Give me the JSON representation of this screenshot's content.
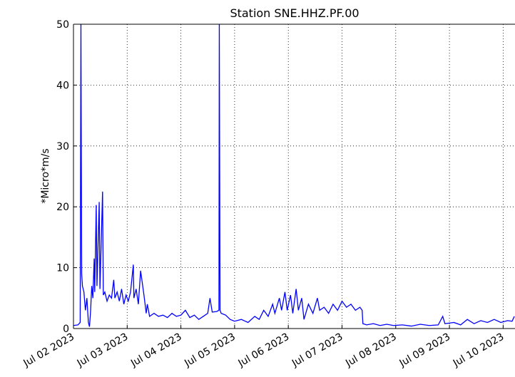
{
  "chart_data": {
    "type": "line",
    "title": "Station SNE.HHZ.PF.00",
    "y_label": "*Micro*m/s",
    "color": "#0000ff",
    "grid": true,
    "x": [
      "2023-07-02T00:00",
      "2023-07-02T02:00",
      "2023-07-02T03:00",
      "2023-07-02T03:20",
      "2023-07-02T03:40",
      "2023-07-02T04:00",
      "2023-07-02T04:40",
      "2023-07-02T05:20",
      "2023-07-02T06:00",
      "2023-07-02T06:40",
      "2023-07-02T07:10",
      "2023-07-02T07:40",
      "2023-07-02T08:10",
      "2023-07-02T08:40",
      "2023-07-02T09:15",
      "2023-07-02T09:30",
      "2023-07-02T10:10",
      "2023-07-02T10:30",
      "2023-07-02T11:30",
      "2023-07-02T11:50",
      "2023-07-02T13:00",
      "2023-07-02T13:20",
      "2023-07-02T14:00",
      "2023-07-02T15:00",
      "2023-07-02T16:00",
      "2023-07-02T17:00",
      "2023-07-02T18:00",
      "2023-07-02T18:30",
      "2023-07-02T19:30",
      "2023-07-02T20:30",
      "2023-07-02T21:30",
      "2023-07-02T22:30",
      "2023-07-02T23:30",
      "2023-07-03T00:30",
      "2023-07-03T01:30",
      "2023-07-03T02:45",
      "2023-07-03T03:00",
      "2023-07-03T04:00",
      "2023-07-03T05:00",
      "2023-07-03T06:00",
      "2023-07-03T07:30",
      "2023-07-03T08:30",
      "2023-07-03T09:00",
      "2023-07-03T10:00",
      "2023-07-03T12:00",
      "2023-07-03T14:00",
      "2023-07-03T16:00",
      "2023-07-03T18:00",
      "2023-07-03T20:00",
      "2023-07-03T22:00",
      "2023-07-04T00:00",
      "2023-07-04T02:00",
      "2023-07-04T04:00",
      "2023-07-04T06:00",
      "2023-07-04T08:00",
      "2023-07-04T10:00",
      "2023-07-04T12:00",
      "2023-07-04T13:00",
      "2023-07-04T14:00",
      "2023-07-04T16:00",
      "2023-07-04T17:00",
      "2023-07-04T17:10",
      "2023-07-04T17:30",
      "2023-07-04T18:00",
      "2023-07-04T20:00",
      "2023-07-04T22:00",
      "2023-07-05T00:00",
      "2023-07-05T03:00",
      "2023-07-05T06:00",
      "2023-07-05T09:00",
      "2023-07-05T11:00",
      "2023-07-05T13:00",
      "2023-07-05T15:00",
      "2023-07-05T17:00",
      "2023-07-05T18:00",
      "2023-07-05T20:00",
      "2023-07-05T21:00",
      "2023-07-05T22:30",
      "2023-07-05T23:30",
      "2023-07-06T01:00",
      "2023-07-06T02:00",
      "2023-07-06T03:30",
      "2023-07-06T04:30",
      "2023-07-06T06:00",
      "2023-07-06T07:00",
      "2023-07-06T09:00",
      "2023-07-06T11:00",
      "2023-07-06T13:00",
      "2023-07-06T14:00",
      "2023-07-06T16:00",
      "2023-07-06T18:00",
      "2023-07-06T20:00",
      "2023-07-06T22:00",
      "2023-07-07T00:00",
      "2023-07-07T02:00",
      "2023-07-07T04:00",
      "2023-07-07T06:00",
      "2023-07-07T08:00",
      "2023-07-07T09:00",
      "2023-07-07T09:20",
      "2023-07-07T11:00",
      "2023-07-07T14:00",
      "2023-07-07T17:00",
      "2023-07-07T20:00",
      "2023-07-07T23:00",
      "2023-07-08T03:00",
      "2023-07-08T07:00",
      "2023-07-08T11:00",
      "2023-07-08T15:00",
      "2023-07-08T19:00",
      "2023-07-08T21:00",
      "2023-07-08T22:00",
      "2023-07-09T02:00",
      "2023-07-09T05:00",
      "2023-07-09T08:00",
      "2023-07-09T11:00",
      "2023-07-09T14:00",
      "2023-07-09T17:00",
      "2023-07-09T20:00",
      "2023-07-09T23:00",
      "2023-07-10T02:00",
      "2023-07-10T04:00",
      "2023-07-10T05:00"
    ],
    "values": [
      0.5,
      0.6,
      1.0,
      50,
      9,
      7,
      6,
      3,
      5,
      1,
      0.3,
      3,
      7,
      5,
      11.5,
      6,
      20.3,
      7,
      20.8,
      6.5,
      22.5,
      5.5,
      6,
      4.5,
      5.5,
      5,
      8,
      5,
      6,
      4.5,
      6.5,
      4,
      5.5,
      4.5,
      6,
      10.5,
      5,
      6.5,
      4,
      9.5,
      5.5,
      2.5,
      4,
      2,
      2.5,
      2,
      2.2,
      1.8,
      2.5,
      2,
      2.2,
      3,
      1.8,
      2.2,
      1.5,
      2,
      2.5,
      5,
      2.7,
      2.8,
      3,
      50,
      3,
      2.5,
      2.2,
      1.5,
      1.2,
      1.5,
      1,
      2,
      1.5,
      3,
      2,
      4,
      2.5,
      5,
      3,
      6,
      3,
      5.5,
      2.5,
      6.5,
      3,
      5,
      1.5,
      4,
      2.5,
      5,
      3,
      3.5,
      2.5,
      4,
      3,
      4.5,
      3.5,
      4,
      3,
      3.5,
      3,
      0.8,
      0.6,
      0.8,
      0.5,
      0.7,
      0.5,
      0.6,
      0.4,
      0.7,
      0.5,
      0.6,
      2,
      0.8,
      1,
      0.6,
      1.5,
      0.8,
      1.3,
      1,
      1.5,
      1,
      1.3,
      1.2,
      2
    ],
    "xlim": [
      "2023-07-02T00:00",
      "2023-07-10T05:18"
    ],
    "xticks": [
      {
        "value": "2023-07-02T00:00",
        "label": "Jul 02 2023"
      },
      {
        "value": "2023-07-03T00:00",
        "label": "Jul 03 2023"
      },
      {
        "value": "2023-07-04T00:00",
        "label": "Jul 04 2023"
      },
      {
        "value": "2023-07-05T00:00",
        "label": "Jul 05 2023"
      },
      {
        "value": "2023-07-06T00:00",
        "label": "Jul 06 2023"
      },
      {
        "value": "2023-07-07T00:00",
        "label": "Jul 07 2023"
      },
      {
        "value": "2023-07-08T00:00",
        "label": "Jul 08 2023"
      },
      {
        "value": "2023-07-09T00:00",
        "label": "Jul 09 2023"
      },
      {
        "value": "2023-07-10T00:00",
        "label": "Jul 10 2023"
      }
    ],
    "ylim": [
      0,
      50
    ],
    "yticks": [
      0,
      10,
      20,
      30,
      40,
      50
    ]
  }
}
